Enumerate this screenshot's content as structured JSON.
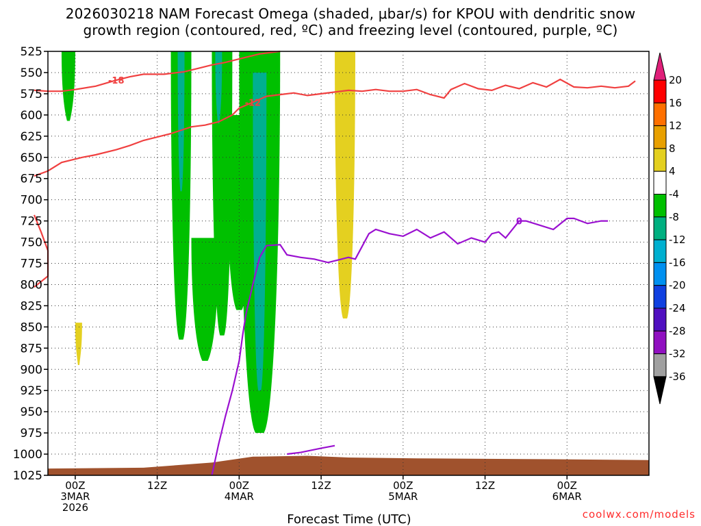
{
  "title_line1": "2026030218 NAM Forecast Omega (shaded, μbar/s) for KPOU with dendritic snow",
  "title_line2": "growth region (contoured, red, ºC) and freezing level (contoured, purple, ºC)",
  "credit": "coolwx.com/models",
  "chart_data": {
    "type": "heatmap",
    "title": "2026030218 NAM Forecast Omega (shaded, μbar/s) for KPOU with dendritic snow growth region (contoured, red, ºC) and freezing level (contoured, purple, ºC)",
    "xlabel": "Forecast Time (UTC)",
    "ylabel": "",
    "x_range_hours": [
      -4,
      84
    ],
    "y_range_mb": [
      525,
      1025
    ],
    "y_ticks": [
      "525",
      "550",
      "575",
      "600",
      "625",
      "650",
      "675",
      "700",
      "725",
      "750",
      "775",
      "800",
      "825",
      "850",
      "875",
      "900",
      "925",
      "950",
      "975",
      "1000",
      "1025"
    ],
    "x_ticks": [
      {
        "hour": 0,
        "lines": [
          "00Z",
          "3MAR",
          "2026"
        ]
      },
      {
        "hour": 12,
        "lines": [
          "12Z"
        ]
      },
      {
        "hour": 24,
        "lines": [
          "00Z",
          "4MAR"
        ]
      },
      {
        "hour": 36,
        "lines": [
          "12Z"
        ]
      },
      {
        "hour": 48,
        "lines": [
          "00Z",
          "5MAR"
        ]
      },
      {
        "hour": 60,
        "lines": [
          "12Z"
        ]
      },
      {
        "hour": 72,
        "lines": [
          "00Z",
          "6MAR"
        ]
      }
    ],
    "grid": true,
    "colorbar": {
      "labels": [
        "20",
        "16",
        "12",
        "8",
        "4",
        "-4",
        "-8",
        "-12",
        "-16",
        "-20",
        "-24",
        "-28",
        "-32",
        "-36"
      ],
      "colors": [
        "#ff0000",
        "#ff7000",
        "#e8a000",
        "#e4d020",
        "#ffffff",
        "#00c000",
        "#00b080",
        "#00b0d0",
        "#0090f0",
        "#1040e0",
        "#5010c0",
        "#9010c0",
        "#a0a0a0"
      ],
      "top_arrow": "#e0207a",
      "bottom_arrow": "#000000"
    },
    "red_contours": [
      {
        "label": "-18",
        "points": [
          [
            -6,
            571
          ],
          [
            -4,
            572
          ],
          [
            -2,
            572
          ],
          [
            0,
            570
          ],
          [
            3,
            566
          ],
          [
            6,
            559
          ],
          [
            8,
            555
          ],
          [
            10,
            552
          ],
          [
            13,
            552
          ],
          [
            16,
            549
          ],
          [
            18,
            545
          ],
          [
            20,
            541
          ],
          [
            22,
            538
          ],
          [
            24,
            534
          ],
          [
            27,
            528
          ],
          [
            29,
            526
          ],
          [
            30,
            525
          ]
        ]
      },
      {
        "label": "-12",
        "points": [
          [
            -6,
            672
          ],
          [
            -4,
            666
          ],
          [
            -2,
            656
          ],
          [
            1,
            650
          ],
          [
            3,
            647
          ],
          [
            6,
            641
          ],
          [
            8,
            636
          ],
          [
            10,
            630
          ],
          [
            13,
            624
          ],
          [
            14,
            622
          ],
          [
            17,
            614
          ],
          [
            19,
            612
          ],
          [
            21,
            608
          ],
          [
            23,
            600
          ],
          [
            24,
            592
          ],
          [
            26,
            585
          ],
          [
            28,
            578
          ],
          [
            30,
            576
          ],
          [
            32,
            574
          ],
          [
            34,
            577
          ],
          [
            36,
            575
          ],
          [
            38,
            573
          ],
          [
            40,
            571
          ],
          [
            42,
            572
          ],
          [
            44,
            570
          ],
          [
            46,
            572
          ],
          [
            48,
            572
          ],
          [
            50,
            570
          ],
          [
            52,
            576
          ],
          [
            54,
            580
          ],
          [
            55,
            570
          ],
          [
            57,
            563
          ],
          [
            59,
            569
          ],
          [
            61,
            571
          ],
          [
            63,
            565
          ],
          [
            65,
            569
          ],
          [
            67,
            562
          ],
          [
            69,
            567
          ],
          [
            71,
            558
          ],
          [
            73,
            567
          ],
          [
            75,
            568
          ],
          [
            77,
            566
          ],
          [
            79,
            568
          ],
          [
            81,
            566
          ],
          [
            82,
            560
          ]
        ]
      },
      {
        "label": "",
        "points": [
          [
            -6,
            718
          ],
          [
            -5,
            738
          ],
          [
            -4,
            760
          ],
          [
            -4,
            790
          ],
          [
            -6,
            803
          ]
        ]
      }
    ],
    "purple_contours": [
      {
        "label": "0",
        "points": [
          [
            20,
            1025
          ],
          [
            21,
            988
          ],
          [
            22,
            955
          ],
          [
            23,
            925
          ],
          [
            24,
            890
          ],
          [
            24.5,
            860
          ],
          [
            25,
            835
          ],
          [
            26,
            800
          ],
          [
            27,
            768
          ],
          [
            28,
            754
          ],
          [
            30,
            753
          ],
          [
            31,
            765
          ],
          [
            33,
            768
          ],
          [
            35,
            770
          ],
          [
            37,
            774
          ],
          [
            39,
            770
          ],
          [
            40,
            768
          ],
          [
            41,
            770
          ],
          [
            42,
            755
          ],
          [
            43,
            740
          ],
          [
            44,
            735
          ],
          [
            46,
            740
          ],
          [
            48,
            743
          ],
          [
            50,
            735
          ],
          [
            51,
            740
          ],
          [
            52,
            745
          ],
          [
            54,
            738
          ],
          [
            56,
            752
          ],
          [
            58,
            745
          ],
          [
            60,
            750
          ],
          [
            61,
            740
          ],
          [
            62,
            738
          ],
          [
            63,
            745
          ],
          [
            65,
            725
          ],
          [
            66,
            725
          ],
          [
            68,
            730
          ],
          [
            70,
            735
          ],
          [
            72,
            722
          ],
          [
            73,
            722
          ],
          [
            75,
            728
          ],
          [
            77,
            725
          ],
          [
            78,
            725
          ]
        ]
      },
      {
        "label": "",
        "points": [
          [
            31,
            1000
          ],
          [
            33,
            998
          ],
          [
            36,
            993
          ],
          [
            38,
            990
          ]
        ]
      }
    ],
    "omega_regions": [
      {
        "value": -8,
        "hour_range": [
          -2,
          0
        ],
        "mb_range": [
          525,
          607
        ]
      },
      {
        "value": 4,
        "hour_range": [
          0,
          1
        ],
        "mb_range": [
          845,
          895
        ]
      },
      {
        "value": -8,
        "hour_range": [
          14,
          17
        ],
        "mb_range": [
          525,
          865
        ]
      },
      {
        "value": -12,
        "hour_range": [
          15,
          16
        ],
        "mb_range": [
          525,
          690
        ]
      },
      {
        "value": -8,
        "hour_range": [
          17,
          21
        ],
        "mb_range": [
          745,
          890
        ]
      },
      {
        "value": -8,
        "hour_range": [
          20,
          23
        ],
        "mb_range": [
          525,
          860
        ]
      },
      {
        "value": -12,
        "hour_range": [
          20.5,
          21.5
        ],
        "mb_range": [
          525,
          610
        ]
      },
      {
        "value": -8,
        "hour_range": [
          22,
          26
        ],
        "mb_range": [
          600,
          830
        ]
      },
      {
        "value": -8,
        "hour_range": [
          24,
          30
        ],
        "mb_range": [
          525,
          975
        ]
      },
      {
        "value": -12,
        "hour_range": [
          26,
          28
        ],
        "mb_range": [
          550,
          925
        ]
      },
      {
        "value": 4,
        "hour_range": [
          38,
          41
        ],
        "mb_range": [
          525,
          840
        ]
      }
    ]
  }
}
